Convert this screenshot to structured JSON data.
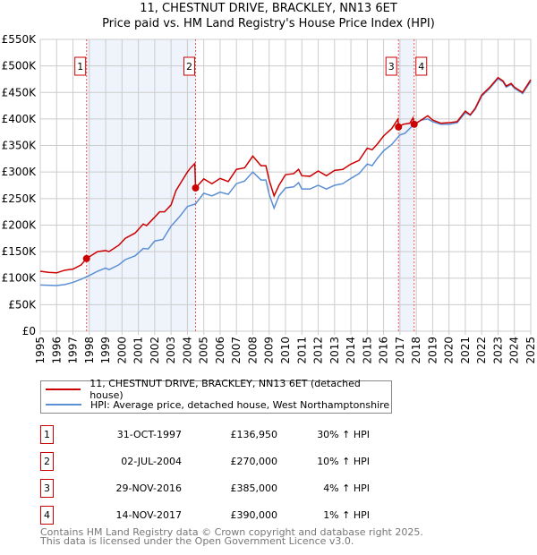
{
  "chart_data": {
    "type": "line",
    "title": "11, CHESTNUT DRIVE, BRACKLEY, NN13 6ET",
    "subtitle": "Price paid vs. HM Land Registry's House Price Index (HPI)",
    "xlim": [
      1995,
      2025
    ],
    "ylim": [
      0,
      550000
    ],
    "yticks": [
      0,
      50000,
      100000,
      150000,
      200000,
      250000,
      300000,
      350000,
      400000,
      450000,
      500000,
      550000
    ],
    "ytick_labels": [
      "£0",
      "£50K",
      "£100K",
      "£150K",
      "£200K",
      "£250K",
      "£300K",
      "£350K",
      "£400K",
      "£450K",
      "£500K",
      "£550K"
    ],
    "xticks": [
      "1995",
      "1996",
      "1997",
      "1998",
      "1999",
      "2000",
      "2001",
      "2002",
      "2003",
      "2004",
      "2005",
      "2006",
      "2007",
      "2008",
      "2009",
      "2010",
      "2011",
      "2012",
      "2013",
      "2014",
      "2015",
      "2016",
      "2017",
      "2018",
      "2019",
      "2020",
      "2021",
      "2022",
      "2023",
      "2024",
      "2025"
    ],
    "grid": true,
    "series": [
      {
        "name": "11, CHESTNUT DRIVE, BRACKLEY, NN13 6ET (detached house)",
        "color": "#cc0000",
        "x": [
          1995,
          1995.5,
          1996,
          1996.5,
          1997,
          1997.5,
          1997.83,
          1998.5,
          1999,
          1999.2,
          1999.8,
          2000.2,
          2000.8,
          2001.3,
          2001.5,
          2002,
          2002.3,
          2002.6,
          2003,
          2003.3,
          2003.6,
          2004,
          2004.2,
          2004.45,
          2004.5,
          2005,
          2005.5,
          2006,
          2006.5,
          2007,
          2007.5,
          2008,
          2008.5,
          2008.8,
          2009,
          2009.3,
          2009.6,
          2010,
          2010.5,
          2010.8,
          2011,
          2011.5,
          2012,
          2012.5,
          2013,
          2013.5,
          2014,
          2014.5,
          2015,
          2015.3,
          2015.6,
          2016,
          2016.5,
          2016.88,
          2016.91,
          2017.2,
          2017.6,
          2017.8,
          2017.87,
          2018.3,
          2018.7,
          2019,
          2019.5,
          2020,
          2020.5,
          2021,
          2021.3,
          2021.6,
          2022,
          2022.5,
          2023,
          2023.3,
          2023.5,
          2023.8,
          2024,
          2024.5,
          2025
        ],
        "y": [
          113,
          111,
          110,
          115,
          117,
          125,
          137,
          150,
          152,
          150,
          162,
          175,
          185,
          202,
          199,
          215,
          225,
          225,
          238,
          265,
          280,
          300,
          308,
          316,
          270,
          287,
          278,
          288,
          282,
          305,
          308,
          330,
          312,
          312,
          285,
          255,
          275,
          295,
          297,
          305,
          293,
          292,
          302,
          293,
          303,
          305,
          315,
          322,
          345,
          342,
          352,
          368,
          382,
          400,
          385,
          390,
          392,
          402,
          390,
          398,
          406,
          398,
          392,
          393,
          395,
          415,
          408,
          420,
          445,
          460,
          478,
          472,
          462,
          467,
          460,
          450,
          474
        ]
      },
      {
        "name": "HPI: Average price, detached house, West Northamptonshire",
        "color": "#5b8fd4",
        "x": [
          1995,
          1996,
          1996.5,
          1997,
          1997.5,
          1998,
          1998.5,
          1999,
          1999.2,
          1999.8,
          2000.2,
          2000.8,
          2001.3,
          2001.6,
          2002,
          2002.5,
          2003,
          2003.5,
          2003.8,
          2004,
          2004.5,
          2005,
          2005.5,
          2006,
          2006.5,
          2007,
          2007.5,
          2008,
          2008.5,
          2008.8,
          2009,
          2009.3,
          2009.6,
          2010,
          2010.5,
          2010.8,
          2011,
          2011.5,
          2012,
          2012.5,
          2013,
          2013.5,
          2014,
          2014.5,
          2015,
          2015.3,
          2015.6,
          2016,
          2016.5,
          2017,
          2017.3,
          2017.8,
          2018.3,
          2018.7,
          2019,
          2019.5,
          2020,
          2020.5,
          2021,
          2021.3,
          2021.6,
          2022,
          2022.5,
          2023,
          2023.3,
          2023.5,
          2023.8,
          2024,
          2024.5,
          2025
        ],
        "y": [
          87,
          86,
          88,
          92,
          98,
          105,
          113,
          119,
          116,
          125,
          135,
          142,
          156,
          155,
          170,
          173,
          198,
          215,
          227,
          235,
          240,
          260,
          255,
          262,
          258,
          278,
          283,
          300,
          285,
          285,
          258,
          232,
          255,
          270,
          272,
          280,
          268,
          268,
          275,
          268,
          275,
          278,
          288,
          297,
          315,
          312,
          325,
          340,
          352,
          370,
          373,
          388,
          398,
          400,
          395,
          390,
          390,
          393,
          412,
          407,
          418,
          443,
          458,
          476,
          470,
          460,
          465,
          458,
          448,
          471
        ]
      }
    ],
    "sales": [
      {
        "id": "1",
        "x": 1997.83,
        "price": 136950,
        "date": "31-OCT-1997",
        "price_label": "£136,950",
        "hpi": "30% ↑ HPI"
      },
      {
        "id": "2",
        "x": 2004.5,
        "price": 270000,
        "date": "02-JUL-2004",
        "price_label": "£270,000",
        "hpi": "10% ↑ HPI"
      },
      {
        "id": "3",
        "x": 2016.91,
        "price": 385000,
        "date": "29-NOV-2016",
        "price_label": "£385,000",
        "hpi": "4% ↑ HPI"
      },
      {
        "id": "4",
        "x": 2017.87,
        "price": 390000,
        "date": "14-NOV-2017",
        "price_label": "£390,000",
        "hpi": "1% ↑ HPI"
      }
    ],
    "shaded": [
      [
        1997.83,
        2004.5
      ],
      [
        2016.91,
        2017.87
      ]
    ]
  },
  "footer": {
    "line1": "Contains HM Land Registry data © Crown copyright and database right 2025.",
    "line2": "This data is licensed under the Open Government Licence v3.0."
  }
}
